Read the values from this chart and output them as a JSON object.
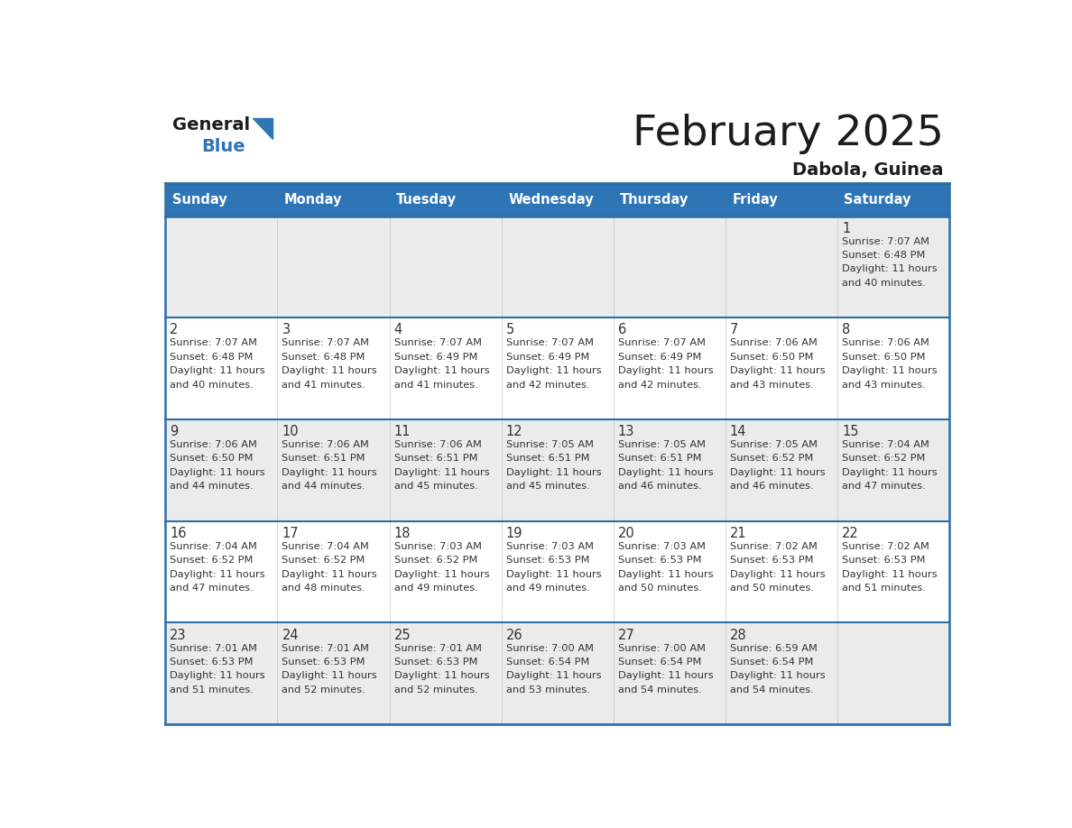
{
  "title": "February 2025",
  "subtitle": "Dabola, Guinea",
  "header_color": "#2E75B6",
  "header_text_color": "#FFFFFF",
  "days_of_week": [
    "Sunday",
    "Monday",
    "Tuesday",
    "Wednesday",
    "Thursday",
    "Friday",
    "Saturday"
  ],
  "cell_bg_row0": "#EBEBEB",
  "cell_bg_row1": "#FFFFFF",
  "cell_bg_row2": "#EBEBEB",
  "cell_bg_row3": "#FFFFFF",
  "cell_bg_row4": "#EBEBEB",
  "divider_color": "#2E6EA6",
  "text_color": "#333333",
  "calendar": [
    [
      null,
      null,
      null,
      null,
      null,
      null,
      {
        "day": 1,
        "sunrise": "7:07 AM",
        "sunset": "6:48 PM",
        "daylight": "11 hours\nand 40 minutes."
      }
    ],
    [
      {
        "day": 2,
        "sunrise": "7:07 AM",
        "sunset": "6:48 PM",
        "daylight": "11 hours\nand 40 minutes."
      },
      {
        "day": 3,
        "sunrise": "7:07 AM",
        "sunset": "6:48 PM",
        "daylight": "11 hours\nand 41 minutes."
      },
      {
        "day": 4,
        "sunrise": "7:07 AM",
        "sunset": "6:49 PM",
        "daylight": "11 hours\nand 41 minutes."
      },
      {
        "day": 5,
        "sunrise": "7:07 AM",
        "sunset": "6:49 PM",
        "daylight": "11 hours\nand 42 minutes."
      },
      {
        "day": 6,
        "sunrise": "7:07 AM",
        "sunset": "6:49 PM",
        "daylight": "11 hours\nand 42 minutes."
      },
      {
        "day": 7,
        "sunrise": "7:06 AM",
        "sunset": "6:50 PM",
        "daylight": "11 hours\nand 43 minutes."
      },
      {
        "day": 8,
        "sunrise": "7:06 AM",
        "sunset": "6:50 PM",
        "daylight": "11 hours\nand 43 minutes."
      }
    ],
    [
      {
        "day": 9,
        "sunrise": "7:06 AM",
        "sunset": "6:50 PM",
        "daylight": "11 hours\nand 44 minutes."
      },
      {
        "day": 10,
        "sunrise": "7:06 AM",
        "sunset": "6:51 PM",
        "daylight": "11 hours\nand 44 minutes."
      },
      {
        "day": 11,
        "sunrise": "7:06 AM",
        "sunset": "6:51 PM",
        "daylight": "11 hours\nand 45 minutes."
      },
      {
        "day": 12,
        "sunrise": "7:05 AM",
        "sunset": "6:51 PM",
        "daylight": "11 hours\nand 45 minutes."
      },
      {
        "day": 13,
        "sunrise": "7:05 AM",
        "sunset": "6:51 PM",
        "daylight": "11 hours\nand 46 minutes."
      },
      {
        "day": 14,
        "sunrise": "7:05 AM",
        "sunset": "6:52 PM",
        "daylight": "11 hours\nand 46 minutes."
      },
      {
        "day": 15,
        "sunrise": "7:04 AM",
        "sunset": "6:52 PM",
        "daylight": "11 hours\nand 47 minutes."
      }
    ],
    [
      {
        "day": 16,
        "sunrise": "7:04 AM",
        "sunset": "6:52 PM",
        "daylight": "11 hours\nand 47 minutes."
      },
      {
        "day": 17,
        "sunrise": "7:04 AM",
        "sunset": "6:52 PM",
        "daylight": "11 hours\nand 48 minutes."
      },
      {
        "day": 18,
        "sunrise": "7:03 AM",
        "sunset": "6:52 PM",
        "daylight": "11 hours\nand 49 minutes."
      },
      {
        "day": 19,
        "sunrise": "7:03 AM",
        "sunset": "6:53 PM",
        "daylight": "11 hours\nand 49 minutes."
      },
      {
        "day": 20,
        "sunrise": "7:03 AM",
        "sunset": "6:53 PM",
        "daylight": "11 hours\nand 50 minutes."
      },
      {
        "day": 21,
        "sunrise": "7:02 AM",
        "sunset": "6:53 PM",
        "daylight": "11 hours\nand 50 minutes."
      },
      {
        "day": 22,
        "sunrise": "7:02 AM",
        "sunset": "6:53 PM",
        "daylight": "11 hours\nand 51 minutes."
      }
    ],
    [
      {
        "day": 23,
        "sunrise": "7:01 AM",
        "sunset": "6:53 PM",
        "daylight": "11 hours\nand 51 minutes."
      },
      {
        "day": 24,
        "sunrise": "7:01 AM",
        "sunset": "6:53 PM",
        "daylight": "11 hours\nand 52 minutes."
      },
      {
        "day": 25,
        "sunrise": "7:01 AM",
        "sunset": "6:53 PM",
        "daylight": "11 hours\nand 52 minutes."
      },
      {
        "day": 26,
        "sunrise": "7:00 AM",
        "sunset": "6:54 PM",
        "daylight": "11 hours\nand 53 minutes."
      },
      {
        "day": 27,
        "sunrise": "7:00 AM",
        "sunset": "6:54 PM",
        "daylight": "11 hours\nand 54 minutes."
      },
      {
        "day": 28,
        "sunrise": "6:59 AM",
        "sunset": "6:54 PM",
        "daylight": "11 hours\nand 54 minutes."
      },
      null
    ]
  ],
  "row_bg_colors": [
    "#EBEBEB",
    "#FFFFFF",
    "#EBEBEB",
    "#FFFFFF",
    "#EBEBEB"
  ]
}
